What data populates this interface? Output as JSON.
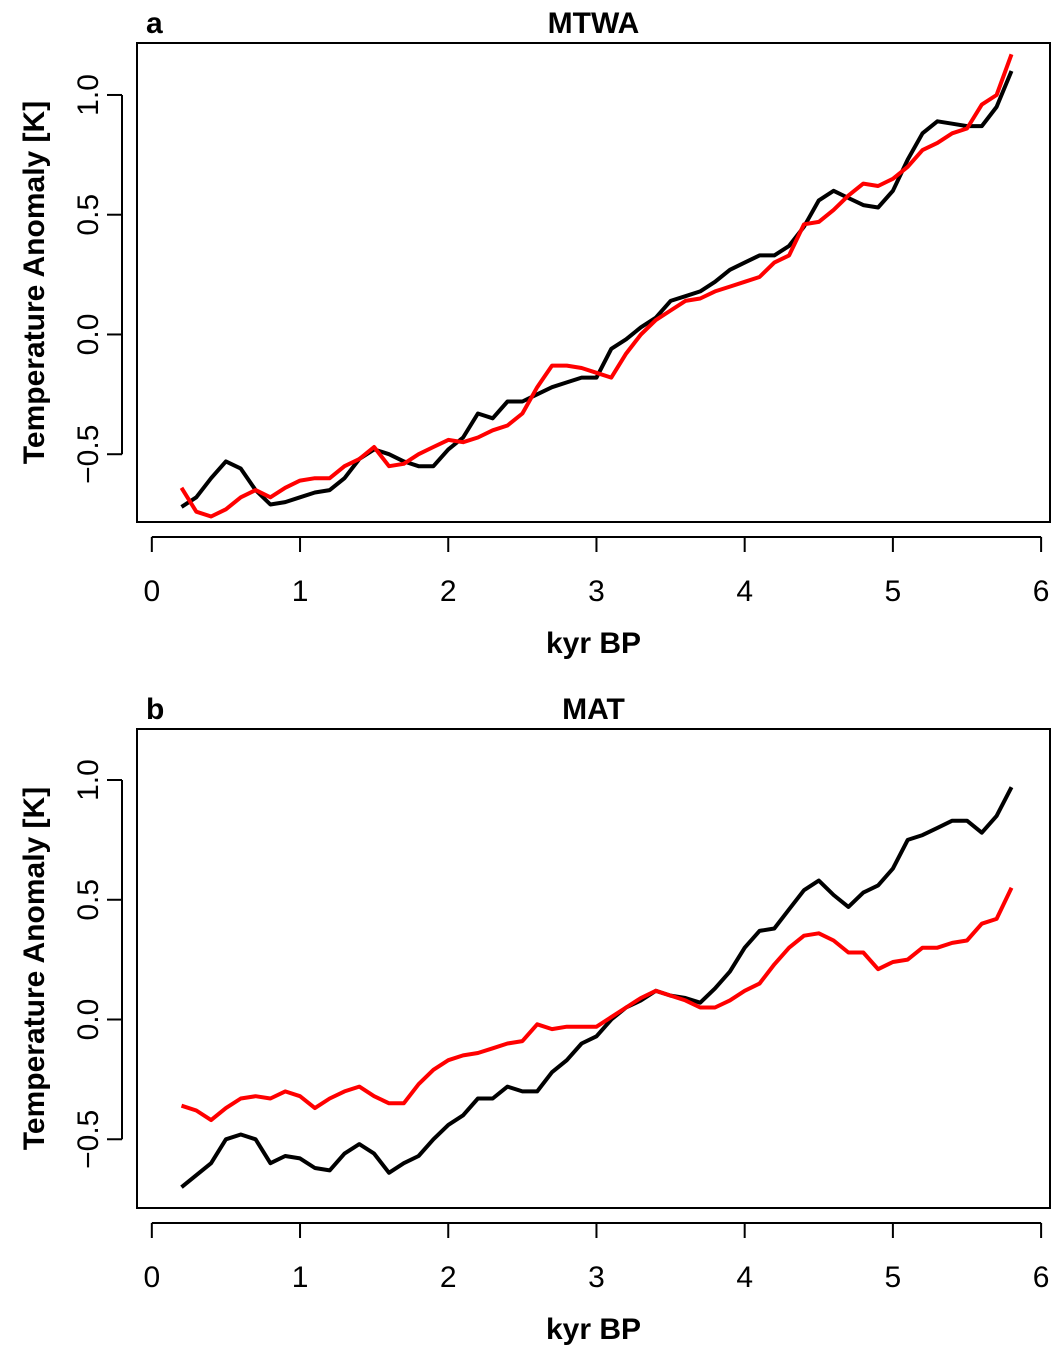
{
  "chart_data": [
    {
      "type": "line",
      "panel_label": "a",
      "title": "MTWA",
      "x_label": "kyr BP",
      "y_label": "Temperature Anomaly [K]",
      "x": [
        0.2,
        0.3,
        0.4,
        0.5,
        0.6,
        0.7,
        0.8,
        0.9,
        1.0,
        1.1,
        1.2,
        1.3,
        1.4,
        1.5,
        1.6,
        1.7,
        1.8,
        1.9,
        2.0,
        2.1,
        2.2,
        2.3,
        2.4,
        2.5,
        2.6,
        2.7,
        2.8,
        2.9,
        3.0,
        3.1,
        3.2,
        3.3,
        3.4,
        3.5,
        3.6,
        3.7,
        3.8,
        3.9,
        4.0,
        4.1,
        4.2,
        4.3,
        4.4,
        4.5,
        4.6,
        4.7,
        4.8,
        4.9,
        5.0,
        5.1,
        5.2,
        5.3,
        5.4,
        5.5,
        5.6,
        5.7,
        5.8
      ],
      "series": [
        {
          "color": "#000000",
          "values": [
            -0.72,
            -0.68,
            -0.6,
            -0.53,
            -0.56,
            -0.65,
            -0.71,
            -0.7,
            -0.68,
            -0.66,
            -0.65,
            -0.6,
            -0.52,
            -0.48,
            -0.5,
            -0.53,
            -0.55,
            -0.55,
            -0.48,
            -0.43,
            -0.33,
            -0.35,
            -0.28,
            -0.28,
            -0.25,
            -0.22,
            -0.2,
            -0.18,
            -0.18,
            -0.06,
            -0.02,
            0.03,
            0.07,
            0.14,
            0.16,
            0.18,
            0.22,
            0.27,
            0.3,
            0.33,
            0.33,
            0.37,
            0.45,
            0.56,
            0.6,
            0.57,
            0.54,
            0.53,
            0.6,
            0.73,
            0.84,
            0.89,
            0.88,
            0.87,
            0.87,
            0.95,
            1.1
          ]
        },
        {
          "color": "#ff0000",
          "values": [
            -0.64,
            -0.74,
            -0.76,
            -0.73,
            -0.68,
            -0.65,
            -0.68,
            -0.64,
            -0.61,
            -0.6,
            -0.6,
            -0.55,
            -0.52,
            -0.47,
            -0.55,
            -0.54,
            -0.5,
            -0.47,
            -0.44,
            -0.45,
            -0.43,
            -0.4,
            -0.38,
            -0.33,
            -0.22,
            -0.13,
            -0.13,
            -0.14,
            -0.16,
            -0.18,
            -0.08,
            0.0,
            0.06,
            0.1,
            0.14,
            0.15,
            0.18,
            0.2,
            0.22,
            0.24,
            0.3,
            0.33,
            0.46,
            0.47,
            0.52,
            0.58,
            0.63,
            0.62,
            0.65,
            0.7,
            0.77,
            0.8,
            0.84,
            0.86,
            0.96,
            1.0,
            1.17
          ]
        }
      ],
      "xlim": [
        -0.1,
        6.06
      ],
      "ylim": [
        -0.783,
        1.217
      ],
      "xticks": [
        0,
        1,
        2,
        3,
        4,
        5,
        6
      ],
      "yticks": [
        {
          "value": -0.5,
          "label": "−0.5"
        },
        {
          "value": 0,
          "label": "0.0"
        },
        {
          "value": 0.5,
          "label": "0.5"
        },
        {
          "value": 1,
          "label": "1.0"
        }
      ]
    },
    {
      "type": "line",
      "panel_label": "b",
      "title": "MAT",
      "x_label": "kyr BP",
      "y_label": "Temperature Anomaly [K]",
      "x": [
        0.2,
        0.3,
        0.4,
        0.5,
        0.6,
        0.7,
        0.8,
        0.9,
        1.0,
        1.1,
        1.2,
        1.3,
        1.4,
        1.5,
        1.6,
        1.7,
        1.8,
        1.9,
        2.0,
        2.1,
        2.2,
        2.3,
        2.4,
        2.5,
        2.6,
        2.7,
        2.8,
        2.9,
        3.0,
        3.1,
        3.2,
        3.3,
        3.4,
        3.5,
        3.6,
        3.7,
        3.8,
        3.9,
        4.0,
        4.1,
        4.2,
        4.3,
        4.4,
        4.5,
        4.6,
        4.7,
        4.8,
        4.9,
        5.0,
        5.1,
        5.2,
        5.3,
        5.4,
        5.5,
        5.6,
        5.7,
        5.8
      ],
      "series": [
        {
          "color": "#000000",
          "values": [
            -0.7,
            -0.65,
            -0.6,
            -0.5,
            -0.48,
            -0.5,
            -0.6,
            -0.57,
            -0.58,
            -0.62,
            -0.63,
            -0.56,
            -0.52,
            -0.56,
            -0.64,
            -0.6,
            -0.57,
            -0.5,
            -0.44,
            -0.4,
            -0.33,
            -0.33,
            -0.28,
            -0.3,
            -0.3,
            -0.22,
            -0.17,
            -0.1,
            -0.07,
            0.0,
            0.05,
            0.08,
            0.12,
            0.1,
            0.09,
            0.07,
            0.13,
            0.2,
            0.3,
            0.37,
            0.38,
            0.46,
            0.54,
            0.58,
            0.52,
            0.47,
            0.53,
            0.56,
            0.63,
            0.75,
            0.77,
            0.8,
            0.83,
            0.83,
            0.78,
            0.85,
            0.97
          ]
        },
        {
          "color": "#ff0000",
          "values": [
            -0.36,
            -0.38,
            -0.42,
            -0.37,
            -0.33,
            -0.32,
            -0.33,
            -0.3,
            -0.32,
            -0.37,
            -0.33,
            -0.3,
            -0.28,
            -0.32,
            -0.35,
            -0.35,
            -0.27,
            -0.21,
            -0.17,
            -0.15,
            -0.14,
            -0.12,
            -0.1,
            -0.09,
            -0.02,
            -0.04,
            -0.03,
            -0.03,
            -0.03,
            0.01,
            0.05,
            0.09,
            0.12,
            0.1,
            0.08,
            0.05,
            0.05,
            0.08,
            0.12,
            0.15,
            0.23,
            0.3,
            0.35,
            0.36,
            0.33,
            0.28,
            0.28,
            0.21,
            0.24,
            0.25,
            0.3,
            0.3,
            0.32,
            0.33,
            0.4,
            0.42,
            0.55
          ]
        }
      ],
      "xlim": [
        -0.1,
        6.06
      ],
      "ylim": [
        -0.787,
        1.213
      ],
      "xticks": [
        0,
        1,
        2,
        3,
        4,
        5,
        6
      ],
      "yticks": [
        {
          "value": -0.5,
          "label": "−0.5"
        },
        {
          "value": 0,
          "label": "0.0"
        },
        {
          "value": 0.5,
          "label": "0.5"
        },
        {
          "value": 1,
          "label": "1.0"
        }
      ]
    }
  ]
}
